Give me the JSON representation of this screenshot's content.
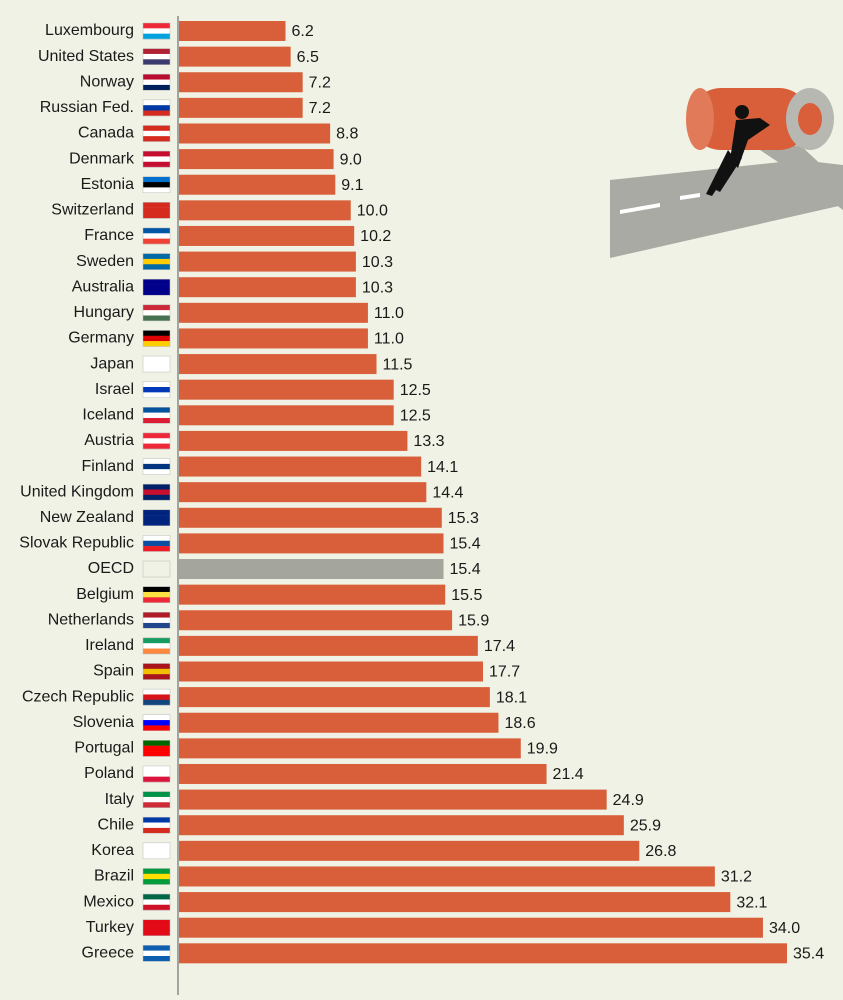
{
  "chart_data": {
    "type": "hbar",
    "categories": [
      "Luxembourg",
      "United States",
      "Norway",
      "Russian Fed.",
      "Canada",
      "Denmark",
      "Estonia",
      "Switzerland",
      "France",
      "Sweden",
      "Australia",
      "Hungary",
      "Germany",
      "Japan",
      "Israel",
      "Iceland",
      "Austria",
      "Finland",
      "United Kingdom",
      "New Zealand",
      "Slovak Republic",
      "OECD",
      "Belgium",
      "Netherlands",
      "Ireland",
      "Spain",
      "Czech Republic",
      "Slovenia",
      "Portugal",
      "Poland",
      "Italy",
      "Chile",
      "Korea",
      "Brazil",
      "Mexico",
      "Turkey",
      "Greece"
    ],
    "values": [
      6.2,
      6.5,
      7.2,
      7.2,
      8.8,
      9.0,
      9.1,
      10.0,
      10.2,
      10.3,
      10.3,
      11.0,
      11.0,
      11.5,
      12.5,
      12.5,
      13.3,
      14.1,
      14.4,
      15.3,
      15.4,
      15.4,
      15.5,
      15.9,
      17.4,
      17.7,
      18.1,
      18.6,
      19.9,
      21.4,
      24.9,
      25.9,
      26.8,
      31.2,
      32.1,
      34.0,
      35.4
    ],
    "value_labels": [
      "6.2",
      "6.5",
      "7.2",
      "7.2",
      "8.8",
      "9.0",
      "9.1",
      "10.0",
      "10.2",
      "10.3",
      "10.3",
      "11.0",
      "11.0",
      "11.5",
      "12.5",
      "12.5",
      "13.3",
      "14.1",
      "14.4",
      "15.3",
      "15.4",
      "15.4",
      "15.5",
      "15.9",
      "17.4",
      "17.7",
      "18.1",
      "18.6",
      "19.9",
      "21.4",
      "24.9",
      "25.9",
      "26.8",
      "31.2",
      "32.1",
      "34.0",
      "35.4"
    ],
    "colors": [
      "#d95f3a",
      "#d95f3a",
      "#d95f3a",
      "#d95f3a",
      "#d95f3a",
      "#d95f3a",
      "#d95f3a",
      "#d95f3a",
      "#d95f3a",
      "#d95f3a",
      "#d95f3a",
      "#d95f3a",
      "#d95f3a",
      "#d95f3a",
      "#d95f3a",
      "#d95f3a",
      "#d95f3a",
      "#d95f3a",
      "#d95f3a",
      "#d95f3a",
      "#d95f3a",
      "#a4a59c",
      "#d95f3a",
      "#d95f3a",
      "#d95f3a",
      "#d95f3a",
      "#d95f3a",
      "#d95f3a",
      "#d95f3a",
      "#d95f3a",
      "#d95f3a",
      "#d95f3a",
      "#d95f3a",
      "#d95f3a",
      "#d95f3a",
      "#d95f3a",
      "#d95f3a"
    ]
  }
}
